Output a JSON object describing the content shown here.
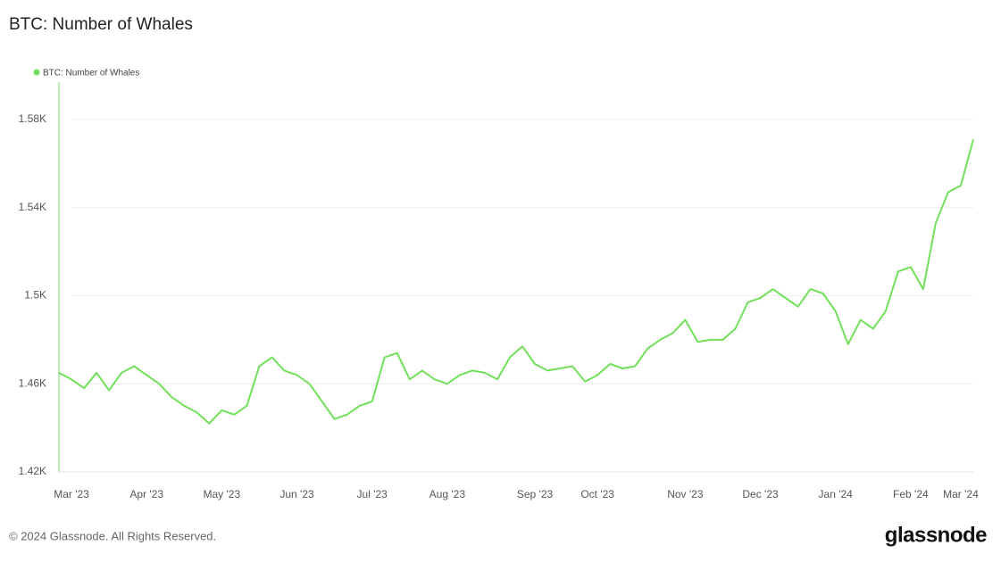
{
  "chart_data": {
    "type": "line",
    "title": "BTC: Number of Whales",
    "categories": [
      null,
      "Mar '23",
      null,
      null,
      null,
      null,
      null,
      "Apr '23",
      null,
      null,
      null,
      null,
      null,
      "May '23",
      null,
      null,
      null,
      null,
      null,
      "Jun '23",
      null,
      null,
      null,
      null,
      null,
      "Jul '23",
      null,
      null,
      null,
      null,
      null,
      "Aug '23",
      null,
      null,
      null,
      null,
      null,
      null,
      "Sep '23",
      null,
      null,
      null,
      null,
      "Oct '23",
      null,
      null,
      null,
      null,
      null,
      null,
      "Nov '23",
      null,
      null,
      null,
      null,
      null,
      "Dec '23",
      null,
      null,
      null,
      null,
      null,
      "Jan '24",
      null,
      null,
      null,
      null,
      null,
      "Feb '24",
      null,
      null,
      null,
      "Mar '24",
      null
    ],
    "series": [
      {
        "name": "BTC: Number of Whales",
        "color": "#72e05b",
        "values": [
          1465,
          1462,
          1458,
          1465,
          1457,
          1465,
          1468,
          1464,
          1460,
          1454,
          1450,
          1447,
          1442,
          1448,
          1446,
          1450,
          1468,
          1472,
          1466,
          1464,
          1460,
          1452,
          1444,
          1446,
          1450,
          1452,
          1472,
          1474,
          1462,
          1466,
          1462,
          1460,
          1464,
          1466,
          1465,
          1462,
          1472,
          1477,
          1469,
          1466,
          1467,
          1468,
          1461,
          1464,
          1469,
          1467,
          1468,
          1476,
          1480,
          1483,
          1489,
          1479,
          1480,
          1480,
          1485,
          1497,
          1499,
          1503,
          1499,
          1495,
          1503,
          1501,
          1493,
          1478,
          1489,
          1485,
          1493,
          1511,
          1513,
          1503,
          1533,
          1547,
          1550,
          1571
        ]
      }
    ],
    "ylim": [
      1420,
      1597
    ],
    "yticks": [
      {
        "value": 1420,
        "label": "1.42K"
      },
      {
        "value": 1460,
        "label": "1.46K"
      },
      {
        "value": 1500,
        "label": "1.5K"
      },
      {
        "value": 1540,
        "label": "1.54K"
      },
      {
        "value": 1580,
        "label": "1.58K"
      }
    ],
    "grid": true,
    "legend": "top-left"
  },
  "footer": {
    "copyright": "© 2024 Glassnode. All Rights Reserved.",
    "logo": "glassnode"
  }
}
